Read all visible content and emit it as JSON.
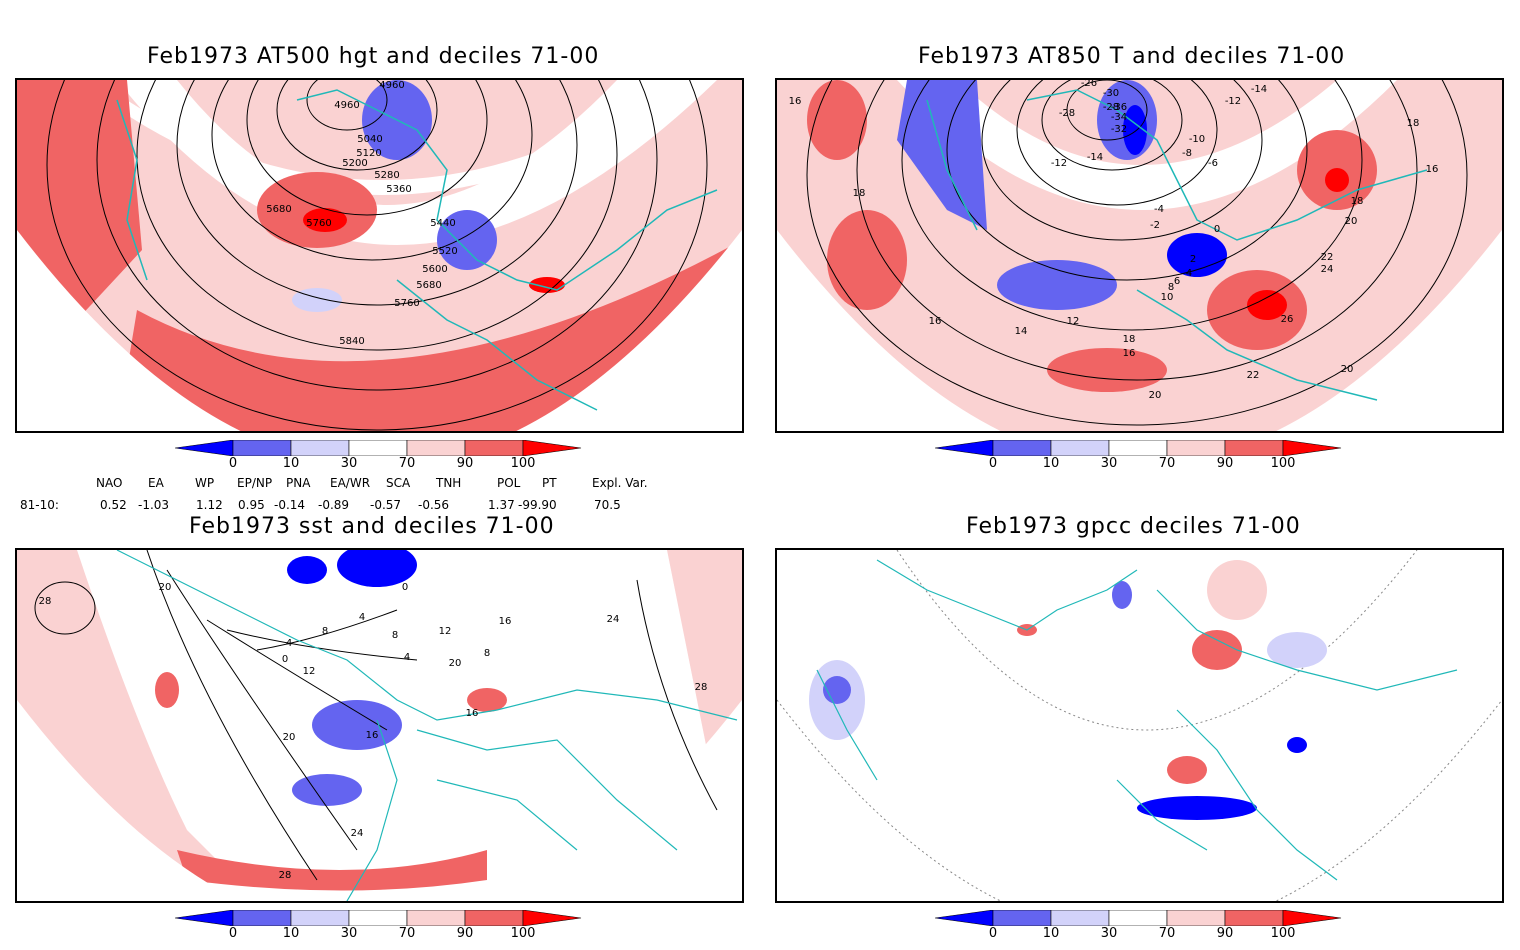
{
  "panels": [
    {
      "title": "Feb1973 AT500 hgt and deciles 71-00",
      "contour_labels": [
        "4960",
        "4960",
        "5040",
        "5120",
        "5200",
        "5280",
        "5360",
        "5440",
        "5520",
        "5600",
        "5680",
        "5680",
        "5760",
        "5760",
        "5840"
      ]
    },
    {
      "title": "Feb1973 AT850 T and deciles 71-00",
      "contour_labels": [
        "-26",
        "-28",
        "-30",
        "-28",
        "-32",
        "-34",
        "-36",
        "-12",
        "-14",
        "-12",
        "-10",
        "-8",
        "-6",
        "-4",
        "-2",
        "0",
        "2",
        "4",
        "6",
        "8",
        "10",
        "12",
        "14",
        "16",
        "16",
        "18",
        "18",
        "18",
        "16",
        "20",
        "22",
        "24",
        "26",
        "22",
        "20",
        "20",
        "18",
        "16",
        "-14"
      ]
    },
    {
      "title": "Feb1973 sst and deciles 71-00",
      "contour_labels": [
        "28",
        "20",
        "0",
        "4",
        "8",
        "12",
        "16",
        "20",
        "24",
        "28",
        "0",
        "4",
        "8",
        "4",
        "12",
        "16",
        "16",
        "24",
        "28",
        "20",
        "8"
      ]
    },
    {
      "title": "Feb1973 gpcc deciles 71-00",
      "contour_labels": []
    }
  ],
  "colorbar": {
    "ticks": [
      "0",
      "10",
      "30",
      "70",
      "90",
      "100"
    ],
    "colors": [
      "#0000ff",
      "#6464f0",
      "#d2d2fa",
      "#ffffff",
      "#fad2d2",
      "#f06464",
      "#ff0000"
    ]
  },
  "indices": {
    "header": [
      "NAO",
      "EA",
      "WP",
      "EP/NP",
      "PNA",
      "EA/WR",
      "SCA",
      "TNH",
      "POL",
      "PT",
      "Expl. Var."
    ],
    "row_label": "81-10:",
    "values": [
      "0.52",
      "-1.03",
      "1.12",
      "0.95",
      "-0.14",
      "-0.89",
      "-0.57",
      "-0.56",
      "1.37",
      "-99.90",
      "70.5"
    ]
  },
  "map_colors": {
    "coast": "#20b8b8",
    "grid": "#888888",
    "contour": "#000000"
  }
}
